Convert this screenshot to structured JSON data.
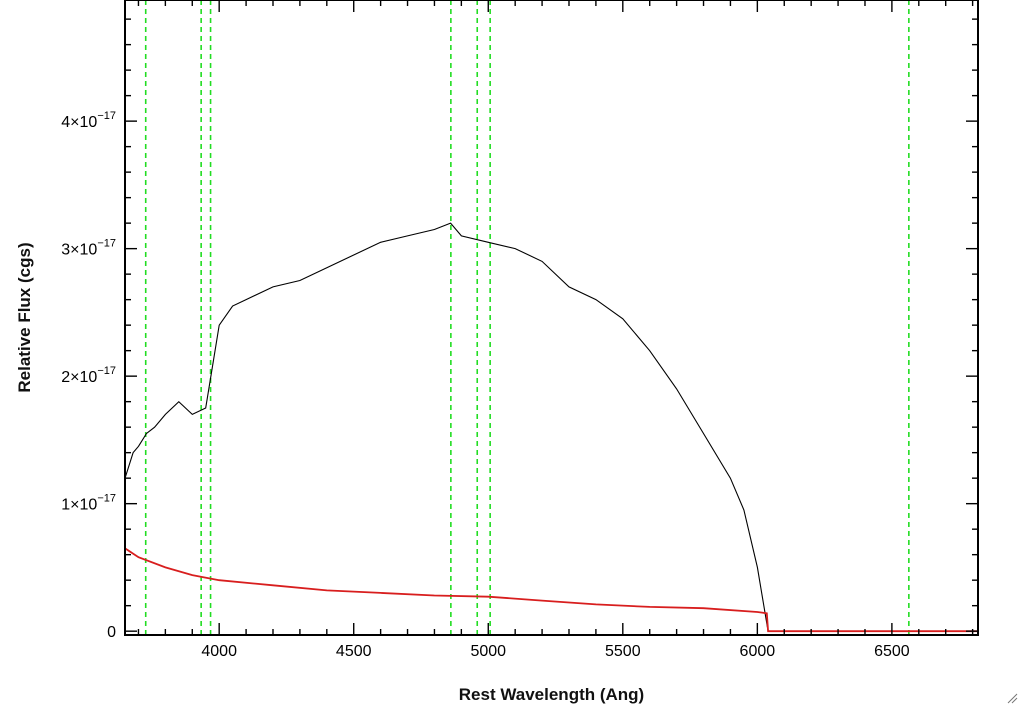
{
  "chart_data": {
    "type": "line",
    "title": "",
    "xlabel": "Rest Wavelength (Ang)",
    "ylabel": "Relative Flux (cgs)",
    "xlim": [
      3650,
      6820
    ],
    "ylim": [
      -3e-19,
      4.95e-17
    ],
    "grid": false,
    "x_ticks": [
      {
        "value": 4000,
        "label": "4000"
      },
      {
        "value": 4500,
        "label": "4500"
      },
      {
        "value": 5000,
        "label": "5000"
      },
      {
        "value": 5500,
        "label": "5500"
      },
      {
        "value": 6000,
        "label": "6000"
      },
      {
        "value": 6500,
        "label": "6500"
      }
    ],
    "y_ticks": [
      {
        "value": 0,
        "mantissa": "0",
        "exponent": ""
      },
      {
        "value": 1e-17,
        "mantissa": "1×10",
        "exponent": "−17"
      },
      {
        "value": 2e-17,
        "mantissa": "2×10",
        "exponent": "−17"
      },
      {
        "value": 3e-17,
        "mantissa": "3×10",
        "exponent": "−17"
      },
      {
        "value": 4e-17,
        "mantissa": "4×10",
        "exponent": "−17"
      }
    ],
    "emission_line_markers": [
      3727,
      3933,
      3968,
      4861,
      4959,
      5007,
      6563
    ],
    "series": [
      {
        "color": "#000000",
        "x": [
          3650,
          3680,
          3700,
          3730,
          3760,
          3800,
          3850,
          3900,
          3950,
          4000,
          4050,
          4100,
          4200,
          4300,
          4400,
          4500,
          4600,
          4700,
          4800,
          4860,
          4900,
          5000,
          5100,
          5200,
          5300,
          5400,
          5500,
          5600,
          5700,
          5800,
          5900,
          5950,
          6000,
          6040
        ],
        "y": [
          1.2e-17,
          1.4e-17,
          1.45e-17,
          1.55e-17,
          1.6e-17,
          1.7e-17,
          1.8e-17,
          1.7e-17,
          1.75e-17,
          2.4e-17,
          2.55e-17,
          2.6e-17,
          2.7e-17,
          2.75e-17,
          2.85e-17,
          2.95e-17,
          3.05e-17,
          3.1e-17,
          3.15e-17,
          3.2e-17,
          3.1e-17,
          3.05e-17,
          3e-17,
          2.9e-17,
          2.7e-17,
          2.6e-17,
          2.45e-17,
          2.2e-17,
          1.9e-17,
          1.55e-17,
          1.2e-17,
          9.5e-18,
          5e-18,
          0.0
        ]
      },
      {
        "color": "#d81e1e",
        "x": [
          3650,
          3700,
          3800,
          3900,
          4000,
          4200,
          4400,
          4600,
          4800,
          5000,
          5200,
          5400,
          5600,
          5800,
          6000,
          6035,
          6040,
          6820
        ],
        "y": [
          6.5e-18,
          5.8e-18,
          5e-18,
          4.4e-18,
          4e-18,
          3.6e-18,
          3.2e-18,
          3e-18,
          2.8e-18,
          2.7e-18,
          2.4e-18,
          2.1e-18,
          1.9e-18,
          1.8e-18,
          1.5e-18,
          1.4e-18,
          0.0,
          0.0
        ]
      }
    ]
  }
}
